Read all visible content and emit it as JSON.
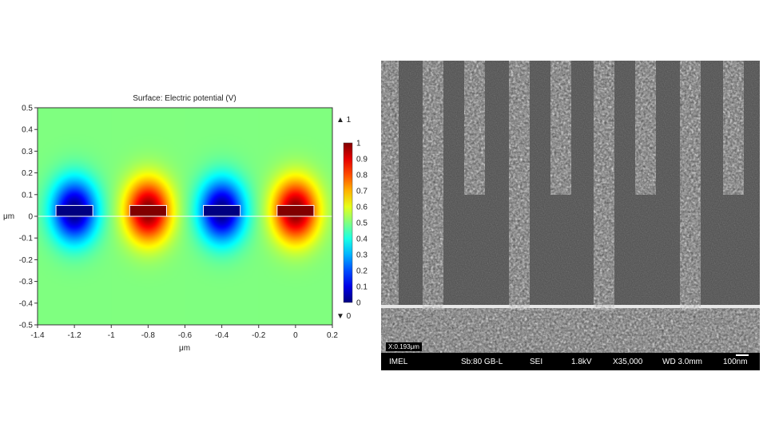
{
  "chart_data": {
    "type": "heatmap",
    "title": "Surface: Electric potential (V)",
    "xlabel": "μm",
    "ylabel": "μm",
    "xlim": [
      -1.4,
      0.2
    ],
    "ylim": [
      -0.5,
      0.5
    ],
    "x_ticks": [
      "-1.4",
      "-1.2",
      "-1",
      "-0.8",
      "-0.6",
      "-0.4",
      "-0.2",
      "0",
      "0.2"
    ],
    "x_tick_values": [
      -1.4,
      -1.2,
      -1,
      -0.8,
      -0.6,
      -0.4,
      -0.2,
      0,
      0.2
    ],
    "y_ticks": [
      "0.5",
      "0.4",
      "0.3",
      "0.2",
      "0.1",
      "0",
      "-0.1",
      "-0.2",
      "-0.3",
      "-0.4",
      "-0.5"
    ],
    "y_tick_values": [
      0.5,
      0.4,
      0.3,
      0.2,
      0.1,
      0,
      -0.1,
      -0.2,
      -0.3,
      -0.4,
      -0.5
    ],
    "colorbar": {
      "max_label": "▲ 1",
      "min_label": "▼ 0",
      "tick_labels": [
        "1",
        "0.9",
        "0.8",
        "0.7",
        "0.6",
        "0.5",
        "0.4",
        "0.3",
        "0.2",
        "0.1",
        "0"
      ],
      "tick_values": [
        1,
        0.9,
        0.8,
        0.7,
        0.6,
        0.5,
        0.4,
        0.3,
        0.2,
        0.1,
        0
      ]
    },
    "electrodes": [
      {
        "x_range": [
          -1.3,
          -1.1
        ],
        "y_range": [
          0,
          0.05
        ],
        "potential": 0
      },
      {
        "x_range": [
          -0.9,
          -0.7
        ],
        "y_range": [
          0,
          0.05
        ],
        "potential": 1
      },
      {
        "x_range": [
          -0.5,
          -0.3
        ],
        "y_range": [
          0,
          0.05
        ],
        "potential": 0
      },
      {
        "x_range": [
          -0.1,
          0.1
        ],
        "y_range": [
          0,
          0.05
        ],
        "potential": 1
      }
    ],
    "background_potential": 0.5
  },
  "sem": {
    "marker_text": "X:0.193μm",
    "info_bar": {
      "lab": "IMEL",
      "stage": "Sb:80  GB-L",
      "detector": "SEI",
      "voltage": "1.8kV",
      "magnification": "X35,000",
      "working_distance": "WD 3.0mm",
      "scale": "100nm"
    }
  }
}
